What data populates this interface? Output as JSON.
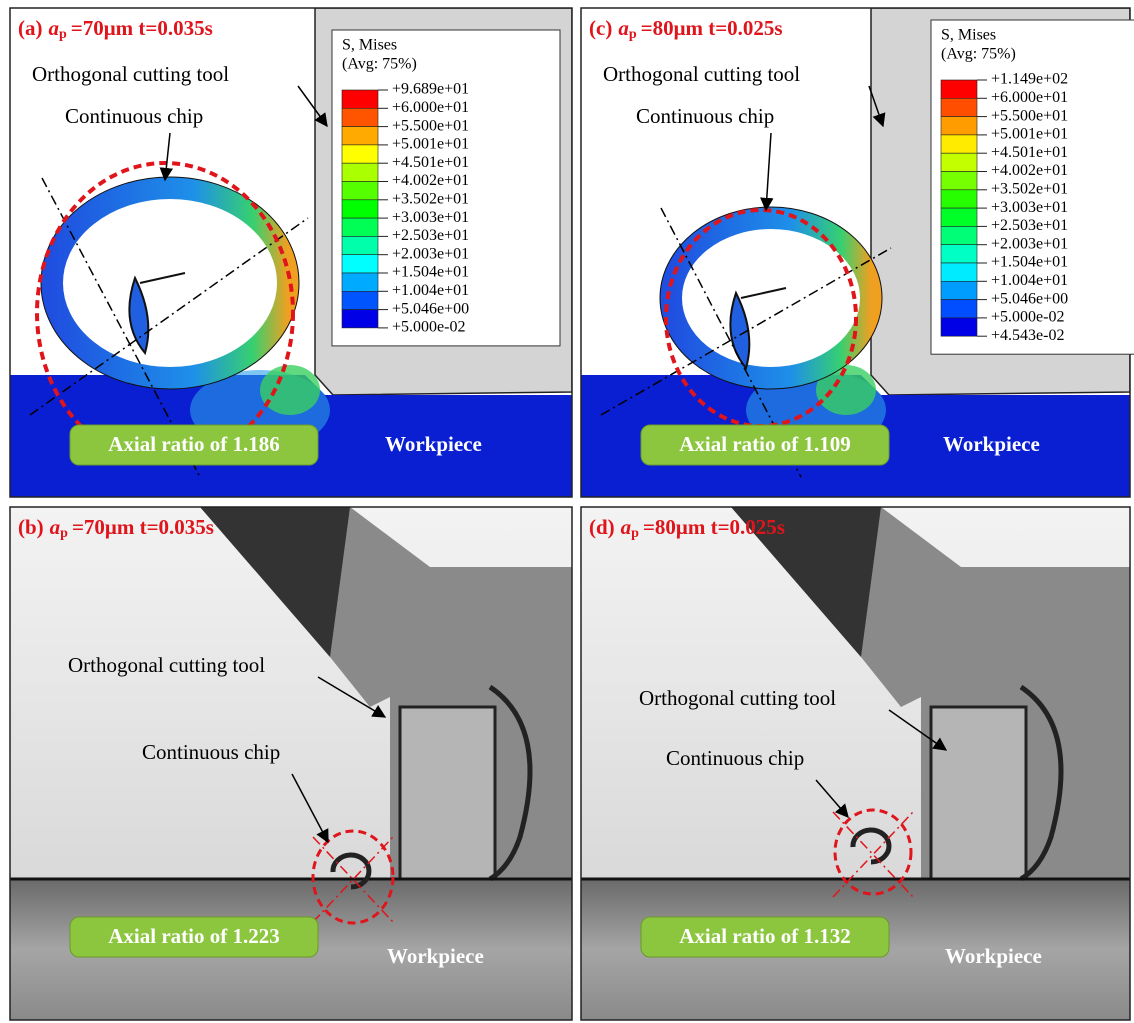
{
  "panels": [
    {
      "label": "(a)",
      "ap_symbol": "a",
      "ap_subscript": "p",
      "condition": "=70μm t=0.035s",
      "tool": "Orthogonal cutting tool",
      "chip": "Continuous chip",
      "workpiece": "Workpiece",
      "axial_ratio": "Axial ratio of 1.186",
      "legend": {
        "title": "S, Mises",
        "average": "(Avg: 75%)",
        "values": [
          "+9.689e+01",
          "+6.000e+01",
          "+5.500e+01",
          "+5.001e+01",
          "+4.501e+01",
          "+4.002e+01",
          "+3.502e+01",
          "+3.003e+01",
          "+2.503e+01",
          "+2.003e+01",
          "+1.504e+01",
          "+1.004e+01",
          "+5.046e+00",
          "+5.000e-02"
        ]
      }
    },
    {
      "label": "(c)",
      "ap_symbol": "a",
      "ap_subscript": "p",
      "condition": "=80μm t=0.025s",
      "tool": "Orthogonal cutting tool",
      "chip": "Continuous chip",
      "workpiece": "Workpiece",
      "axial_ratio": "Axial ratio of 1.109",
      "legend": {
        "title": "S, Mises",
        "average": "(Avg: 75%)",
        "values": [
          "+1.149e+02",
          "+6.000e+01",
          "+5.500e+01",
          "+5.001e+01",
          "+4.501e+01",
          "+4.002e+01",
          "+3.502e+01",
          "+3.003e+01",
          "+2.503e+01",
          "+2.003e+01",
          "+1.504e+01",
          "+1.004e+01",
          "+5.046e+00",
          "+5.000e-02",
          "+4.543e-02"
        ]
      }
    },
    {
      "label": "(b)",
      "ap_symbol": "a",
      "ap_subscript": "p",
      "condition": "=70μm t=0.035s",
      "tool": "Orthogonal cutting tool",
      "chip": "Continuous chip",
      "workpiece": "Workpiece",
      "axial_ratio": "Axial ratio of 1.223"
    },
    {
      "label": "(d)",
      "ap_symbol": "a",
      "ap_subscript": "p",
      "condition": "=80μm t=0.025s",
      "tool": "Orthogonal cutting tool",
      "chip": "Continuous chip",
      "workpiece": "Workpiece",
      "axial_ratio": "Axial ratio of 1.132"
    }
  ]
}
